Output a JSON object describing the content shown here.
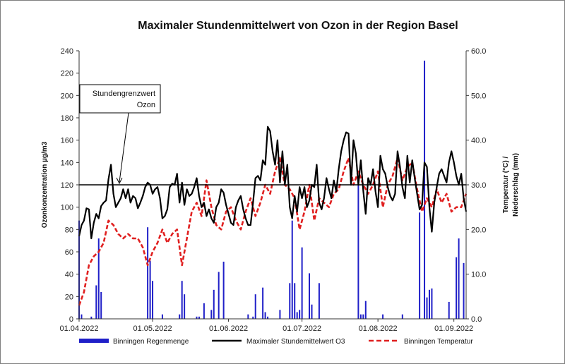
{
  "chart_data": {
    "type": "line",
    "title": "Maximaler Stundenmittelwert von Ozon in der Region Basel",
    "ylabel": "Ozonkonzentration  µg/m3",
    "y2label_line1": "Temperatur (°C) /",
    "y2label_line2": "Niederschlag (mm)",
    "ylim": [
      0,
      240
    ],
    "y2lim": [
      0,
      60
    ],
    "yticks": [
      "0",
      "20",
      "40",
      "60",
      "80",
      "100",
      "120",
      "140",
      "160",
      "180",
      "200",
      "220",
      "240"
    ],
    "y2ticks": [
      "0.0",
      "10.0",
      "20.0",
      "30.0",
      "40.0",
      "50.0",
      "60.0"
    ],
    "xlim": [
      "01.04.2022",
      "06.09.2022"
    ],
    "xticks": [
      "01.04.2022",
      "01.05.2022",
      "01.06.2022",
      "01.07.2022",
      "01.08.2022",
      "01.09.2022"
    ],
    "grid": false,
    "legend_position": "bottom",
    "limit_line": {
      "value": 120,
      "label_line1": "Stundengrenzwert",
      "label_line2": "Ozon"
    },
    "legend": {
      "rain": "Binningen Regenmenge",
      "ozone": "Maximaler Stundemittelwert O3",
      "temp": "Binningen Temperatur"
    },
    "colors": {
      "rain": "#1f1fc8",
      "ozone": "#000000",
      "temp": "#e02020",
      "limit": "#000000"
    },
    "ozone": [
      {
        "x": "01.04.2022",
        "y": 74
      },
      {
        "x": "02.04.2022",
        "y": 84
      },
      {
        "x": "03.04.2022",
        "y": 88
      },
      {
        "x": "04.04.2022",
        "y": 99
      },
      {
        "x": "05.04.2022",
        "y": 98
      },
      {
        "x": "06.04.2022",
        "y": 72
      },
      {
        "x": "07.04.2022",
        "y": 86
      },
      {
        "x": "08.04.2022",
        "y": 94
      },
      {
        "x": "09.04.2022",
        "y": 90
      },
      {
        "x": "10.04.2022",
        "y": 101
      },
      {
        "x": "11.04.2022",
        "y": 104
      },
      {
        "x": "12.04.2022",
        "y": 106
      },
      {
        "x": "13.04.2022",
        "y": 125
      },
      {
        "x": "14.04.2022",
        "y": 138
      },
      {
        "x": "15.04.2022",
        "y": 112
      },
      {
        "x": "16.04.2022",
        "y": 100
      },
      {
        "x": "17.04.2022",
        "y": 104
      },
      {
        "x": "18.04.2022",
        "y": 108
      },
      {
        "x": "19.04.2022",
        "y": 116
      },
      {
        "x": "20.04.2022",
        "y": 108
      },
      {
        "x": "21.04.2022",
        "y": 116
      },
      {
        "x": "22.04.2022",
        "y": 104
      },
      {
        "x": "23.04.2022",
        "y": 110
      },
      {
        "x": "24.04.2022",
        "y": 108
      },
      {
        "x": "25.04.2022",
        "y": 99
      },
      {
        "x": "26.04.2022",
        "y": 104
      },
      {
        "x": "27.04.2022",
        "y": 110
      },
      {
        "x": "28.04.2022",
        "y": 118
      },
      {
        "x": "29.04.2022",
        "y": 122
      },
      {
        "x": "30.04.2022",
        "y": 120
      },
      {
        "x": "01.05.2022",
        "y": 112
      },
      {
        "x": "02.05.2022",
        "y": 116
      },
      {
        "x": "03.05.2022",
        "y": 118
      },
      {
        "x": "04.05.2022",
        "y": 108
      },
      {
        "x": "05.05.2022",
        "y": 90
      },
      {
        "x": "06.05.2022",
        "y": 92
      },
      {
        "x": "07.05.2022",
        "y": 98
      },
      {
        "x": "08.05.2022",
        "y": 118
      },
      {
        "x": "09.05.2022",
        "y": 121
      },
      {
        "x": "10.05.2022",
        "y": 120
      },
      {
        "x": "11.05.2022",
        "y": 130
      },
      {
        "x": "12.05.2022",
        "y": 104
      },
      {
        "x": "13.05.2022",
        "y": 122
      },
      {
        "x": "14.05.2022",
        "y": 102
      },
      {
        "x": "15.05.2022",
        "y": 116
      },
      {
        "x": "16.05.2022",
        "y": 110
      },
      {
        "x": "17.05.2022",
        "y": 112
      },
      {
        "x": "18.05.2022",
        "y": 118
      },
      {
        "x": "19.05.2022",
        "y": 126
      },
      {
        "x": "20.05.2022",
        "y": 110
      },
      {
        "x": "21.05.2022",
        "y": 100
      },
      {
        "x": "22.05.2022",
        "y": 104
      },
      {
        "x": "23.05.2022",
        "y": 92
      },
      {
        "x": "24.05.2022",
        "y": 98
      },
      {
        "x": "25.05.2022",
        "y": 90
      },
      {
        "x": "26.05.2022",
        "y": 86
      },
      {
        "x": "27.05.2022",
        "y": 100
      },
      {
        "x": "28.05.2022",
        "y": 104
      },
      {
        "x": "29.05.2022",
        "y": 116
      },
      {
        "x": "30.05.2022",
        "y": 113
      },
      {
        "x": "31.05.2022",
        "y": 102
      },
      {
        "x": "01.06.2022",
        "y": 94
      },
      {
        "x": "02.06.2022",
        "y": 86
      },
      {
        "x": "03.06.2022",
        "y": 84
      },
      {
        "x": "04.06.2022",
        "y": 100
      },
      {
        "x": "05.06.2022",
        "y": 106
      },
      {
        "x": "06.06.2022",
        "y": 110
      },
      {
        "x": "07.06.2022",
        "y": 98
      },
      {
        "x": "08.06.2022",
        "y": 90
      },
      {
        "x": "09.06.2022",
        "y": 84
      },
      {
        "x": "10.06.2022",
        "y": 84
      },
      {
        "x": "11.06.2022",
        "y": 104
      },
      {
        "x": "12.06.2022",
        "y": 126
      },
      {
        "x": "13.06.2022",
        "y": 128
      },
      {
        "x": "14.06.2022",
        "y": 124
      },
      {
        "x": "15.06.2022",
        "y": 142
      },
      {
        "x": "16.06.2022",
        "y": 138
      },
      {
        "x": "17.06.2022",
        "y": 172
      },
      {
        "x": "18.06.2022",
        "y": 168
      },
      {
        "x": "19.06.2022",
        "y": 150
      },
      {
        "x": "20.06.2022",
        "y": 138
      },
      {
        "x": "21.06.2022",
        "y": 160
      },
      {
        "x": "22.06.2022",
        "y": 122
      },
      {
        "x": "23.06.2022",
        "y": 150
      },
      {
        "x": "24.06.2022",
        "y": 120
      },
      {
        "x": "25.06.2022",
        "y": 138
      },
      {
        "x": "26.06.2022",
        "y": 100
      },
      {
        "x": "27.06.2022",
        "y": 90
      },
      {
        "x": "28.06.2022",
        "y": 110
      },
      {
        "x": "29.06.2022",
        "y": 96
      },
      {
        "x": "30.06.2022",
        "y": 118
      },
      {
        "x": "01.07.2022",
        "y": 108
      },
      {
        "x": "02.07.2022",
        "y": 118
      },
      {
        "x": "03.07.2022",
        "y": 100
      },
      {
        "x": "04.07.2022",
        "y": 106
      },
      {
        "x": "05.07.2022",
        "y": 120
      },
      {
        "x": "06.07.2022",
        "y": 118
      },
      {
        "x": "07.07.2022",
        "y": 138
      },
      {
        "x": "08.07.2022",
        "y": 104
      },
      {
        "x": "09.07.2022",
        "y": 98
      },
      {
        "x": "10.07.2022",
        "y": 108
      },
      {
        "x": "11.07.2022",
        "y": 126
      },
      {
        "x": "12.07.2022",
        "y": 116
      },
      {
        "x": "13.07.2022",
        "y": 108
      },
      {
        "x": "14.07.2022",
        "y": 124
      },
      {
        "x": "15.07.2022",
        "y": 114
      },
      {
        "x": "16.07.2022",
        "y": 134
      },
      {
        "x": "17.07.2022",
        "y": 150
      },
      {
        "x": "18.07.2022",
        "y": 160
      },
      {
        "x": "19.07.2022",
        "y": 167
      },
      {
        "x": "20.07.2022",
        "y": 166
      },
      {
        "x": "21.07.2022",
        "y": 120
      },
      {
        "x": "22.07.2022",
        "y": 160
      },
      {
        "x": "23.07.2022",
        "y": 148
      },
      {
        "x": "24.07.2022",
        "y": 120
      },
      {
        "x": "25.07.2022",
        "y": 142
      },
      {
        "x": "26.07.2022",
        "y": 115
      },
      {
        "x": "27.07.2022",
        "y": 94
      },
      {
        "x": "28.07.2022",
        "y": 126
      },
      {
        "x": "29.07.2022",
        "y": 120
      },
      {
        "x": "30.07.2022",
        "y": 134
      },
      {
        "x": "31.07.2022",
        "y": 114
      },
      {
        "x": "01.08.2022",
        "y": 100
      },
      {
        "x": "02.08.2022",
        "y": 146
      },
      {
        "x": "03.08.2022",
        "y": 134
      },
      {
        "x": "04.08.2022",
        "y": 130
      },
      {
        "x": "05.08.2022",
        "y": 118
      },
      {
        "x": "06.08.2022",
        "y": 110
      },
      {
        "x": "07.08.2022",
        "y": 106
      },
      {
        "x": "08.08.2022",
        "y": 112
      },
      {
        "x": "09.08.2022",
        "y": 150
      },
      {
        "x": "10.08.2022",
        "y": 136
      },
      {
        "x": "11.08.2022",
        "y": 118
      },
      {
        "x": "12.08.2022",
        "y": 108
      },
      {
        "x": "13.08.2022",
        "y": 146
      },
      {
        "x": "14.08.2022",
        "y": 122
      },
      {
        "x": "15.08.2022",
        "y": 142
      },
      {
        "x": "16.08.2022",
        "y": 126
      },
      {
        "x": "17.08.2022",
        "y": 112
      },
      {
        "x": "18.08.2022",
        "y": 98
      },
      {
        "x": "19.08.2022",
        "y": 102
      },
      {
        "x": "20.08.2022",
        "y": 140
      },
      {
        "x": "21.08.2022",
        "y": 136
      },
      {
        "x": "22.08.2022",
        "y": 100
      },
      {
        "x": "23.08.2022",
        "y": 78
      },
      {
        "x": "24.08.2022",
        "y": 104
      },
      {
        "x": "25.08.2022",
        "y": 118
      },
      {
        "x": "26.08.2022",
        "y": 130
      },
      {
        "x": "27.08.2022",
        "y": 134
      },
      {
        "x": "28.08.2022",
        "y": 128
      },
      {
        "x": "29.08.2022",
        "y": 122
      },
      {
        "x": "30.08.2022",
        "y": 140
      },
      {
        "x": "31.08.2022",
        "y": 150
      },
      {
        "x": "01.09.2022",
        "y": 140
      },
      {
        "x": "02.09.2022",
        "y": 128
      },
      {
        "x": "03.09.2022",
        "y": 120
      },
      {
        "x": "04.09.2022",
        "y": 130
      },
      {
        "x": "05.09.2022",
        "y": 108
      },
      {
        "x": "06.09.2022",
        "y": 96
      }
    ],
    "temperature": [
      {
        "x": "01.04.2022",
        "y": 3
      },
      {
        "x": "03.04.2022",
        "y": 6
      },
      {
        "x": "05.04.2022",
        "y": 12
      },
      {
        "x": "07.04.2022",
        "y": 14
      },
      {
        "x": "09.04.2022",
        "y": 15
      },
      {
        "x": "11.04.2022",
        "y": 17
      },
      {
        "x": "13.04.2022",
        "y": 22
      },
      {
        "x": "15.04.2022",
        "y": 21
      },
      {
        "x": "17.04.2022",
        "y": 19
      },
      {
        "x": "19.04.2022",
        "y": 18
      },
      {
        "x": "21.04.2022",
        "y": 19
      },
      {
        "x": "23.04.2022",
        "y": 18
      },
      {
        "x": "25.04.2022",
        "y": 18
      },
      {
        "x": "27.04.2022",
        "y": 16
      },
      {
        "x": "29.04.2022",
        "y": 12
      },
      {
        "x": "01.05.2022",
        "y": 15
      },
      {
        "x": "03.05.2022",
        "y": 17
      },
      {
        "x": "05.05.2022",
        "y": 20
      },
      {
        "x": "07.05.2022",
        "y": 17
      },
      {
        "x": "09.05.2022",
        "y": 19
      },
      {
        "x": "11.05.2022",
        "y": 20
      },
      {
        "x": "13.05.2022",
        "y": 12
      },
      {
        "x": "15.05.2022",
        "y": 18
      },
      {
        "x": "17.05.2022",
        "y": 24
      },
      {
        "x": "19.05.2022",
        "y": 26
      },
      {
        "x": "21.05.2022",
        "y": 23
      },
      {
        "x": "23.05.2022",
        "y": 31
      },
      {
        "x": "25.05.2022",
        "y": 25
      },
      {
        "x": "27.05.2022",
        "y": 21
      },
      {
        "x": "29.05.2022",
        "y": 20
      },
      {
        "x": "31.05.2022",
        "y": 24
      },
      {
        "x": "02.06.2022",
        "y": 25
      },
      {
        "x": "04.06.2022",
        "y": 22
      },
      {
        "x": "06.06.2022",
        "y": 20
      },
      {
        "x": "08.06.2022",
        "y": 24
      },
      {
        "x": "10.06.2022",
        "y": 27
      },
      {
        "x": "12.06.2022",
        "y": 23
      },
      {
        "x": "14.06.2022",
        "y": 26
      },
      {
        "x": "16.06.2022",
        "y": 30
      },
      {
        "x": "18.06.2022",
        "y": 28
      },
      {
        "x": "20.06.2022",
        "y": 33
      },
      {
        "x": "22.06.2022",
        "y": 36
      },
      {
        "x": "24.06.2022",
        "y": 30
      },
      {
        "x": "26.06.2022",
        "y": 29
      },
      {
        "x": "28.06.2022",
        "y": 27
      },
      {
        "x": "30.06.2022",
        "y": 20
      },
      {
        "x": "02.07.2022",
        "y": 24
      },
      {
        "x": "04.07.2022",
        "y": 30
      },
      {
        "x": "06.07.2022",
        "y": 22
      },
      {
        "x": "08.07.2022",
        "y": 27
      },
      {
        "x": "10.07.2022",
        "y": 26
      },
      {
        "x": "12.07.2022",
        "y": 25
      },
      {
        "x": "14.07.2022",
        "y": 28
      },
      {
        "x": "16.07.2022",
        "y": 29
      },
      {
        "x": "18.07.2022",
        "y": 33
      },
      {
        "x": "20.07.2022",
        "y": 36
      },
      {
        "x": "22.07.2022",
        "y": 30
      },
      {
        "x": "24.07.2022",
        "y": 33
      },
      {
        "x": "26.07.2022",
        "y": 30
      },
      {
        "x": "28.07.2022",
        "y": 28
      },
      {
        "x": "30.07.2022",
        "y": 30
      },
      {
        "x": "01.08.2022",
        "y": 33
      },
      {
        "x": "03.08.2022",
        "y": 25
      },
      {
        "x": "05.08.2022",
        "y": 30
      },
      {
        "x": "07.08.2022",
        "y": 32
      },
      {
        "x": "09.08.2022",
        "y": 36
      },
      {
        "x": "11.08.2022",
        "y": 31
      },
      {
        "x": "13.08.2022",
        "y": 34
      },
      {
        "x": "15.08.2022",
        "y": 35
      },
      {
        "x": "17.08.2022",
        "y": 29
      },
      {
        "x": "19.08.2022",
        "y": 24
      },
      {
        "x": "21.08.2022",
        "y": 27
      },
      {
        "x": "23.08.2022",
        "y": 25
      },
      {
        "x": "25.08.2022",
        "y": 29
      },
      {
        "x": "27.08.2022",
        "y": 26
      },
      {
        "x": "29.08.2022",
        "y": 28
      },
      {
        "x": "31.08.2022",
        "y": 24
      },
      {
        "x": "02.09.2022",
        "y": 25
      },
      {
        "x": "04.09.2022",
        "y": 25
      },
      {
        "x": "06.09.2022",
        "y": 28
      }
    ],
    "rain": [
      {
        "x": "01.04.2022",
        "y": 22
      },
      {
        "x": "02.04.2022",
        "y": 1
      },
      {
        "x": "06.04.2022",
        "y": 0.5
      },
      {
        "x": "08.04.2022",
        "y": 7.5
      },
      {
        "x": "09.04.2022",
        "y": 18
      },
      {
        "x": "10.04.2022",
        "y": 6
      },
      {
        "x": "29.04.2022",
        "y": 20.5
      },
      {
        "x": "30.04.2022",
        "y": 13
      },
      {
        "x": "01.05.2022",
        "y": 8.5
      },
      {
        "x": "05.05.2022",
        "y": 1
      },
      {
        "x": "12.05.2022",
        "y": 1
      },
      {
        "x": "13.05.2022",
        "y": 8.5
      },
      {
        "x": "14.05.2022",
        "y": 5.5
      },
      {
        "x": "19.05.2022",
        "y": 0.5
      },
      {
        "x": "20.05.2022",
        "y": 0.5
      },
      {
        "x": "22.05.2022",
        "y": 3.5
      },
      {
        "x": "25.05.2022",
        "y": 2
      },
      {
        "x": "26.05.2022",
        "y": 6.5
      },
      {
        "x": "28.05.2022",
        "y": 10.5
      },
      {
        "x": "30.05.2022",
        "y": 12.8
      },
      {
        "x": "09.06.2022",
        "y": 1
      },
      {
        "x": "11.06.2022",
        "y": 0.5
      },
      {
        "x": "12.06.2022",
        "y": 5.5
      },
      {
        "x": "15.06.2022",
        "y": 7
      },
      {
        "x": "16.06.2022",
        "y": 1.5
      },
      {
        "x": "17.06.2022",
        "y": 0.5
      },
      {
        "x": "22.06.2022",
        "y": 2
      },
      {
        "x": "26.06.2022",
        "y": 8
      },
      {
        "x": "27.06.2022",
        "y": 22
      },
      {
        "x": "28.06.2022",
        "y": 8
      },
      {
        "x": "29.06.2022",
        "y": 1.5
      },
      {
        "x": "30.06.2022",
        "y": 2
      },
      {
        "x": "01.07.2022",
        "y": 16
      },
      {
        "x": "04.07.2022",
        "y": 10.2
      },
      {
        "x": "05.07.2022",
        "y": 3.2
      },
      {
        "x": "08.07.2022",
        "y": 8
      },
      {
        "x": "24.07.2022",
        "y": 30
      },
      {
        "x": "25.07.2022",
        "y": 1
      },
      {
        "x": "26.07.2022",
        "y": 1
      },
      {
        "x": "27.07.2022",
        "y": 4
      },
      {
        "x": "03.08.2022",
        "y": 1
      },
      {
        "x": "11.08.2022",
        "y": 1
      },
      {
        "x": "18.08.2022",
        "y": 23.8
      },
      {
        "x": "20.08.2022",
        "y": 57.8
      },
      {
        "x": "21.08.2022",
        "y": 4.8
      },
      {
        "x": "22.08.2022",
        "y": 6.5
      },
      {
        "x": "23.08.2022",
        "y": 6.8
      },
      {
        "x": "30.08.2022",
        "y": 3.8
      },
      {
        "x": "02.09.2022",
        "y": 13.8
      },
      {
        "x": "03.09.2022",
        "y": 18
      },
      {
        "x": "05.09.2022",
        "y": 12.5
      }
    ]
  }
}
